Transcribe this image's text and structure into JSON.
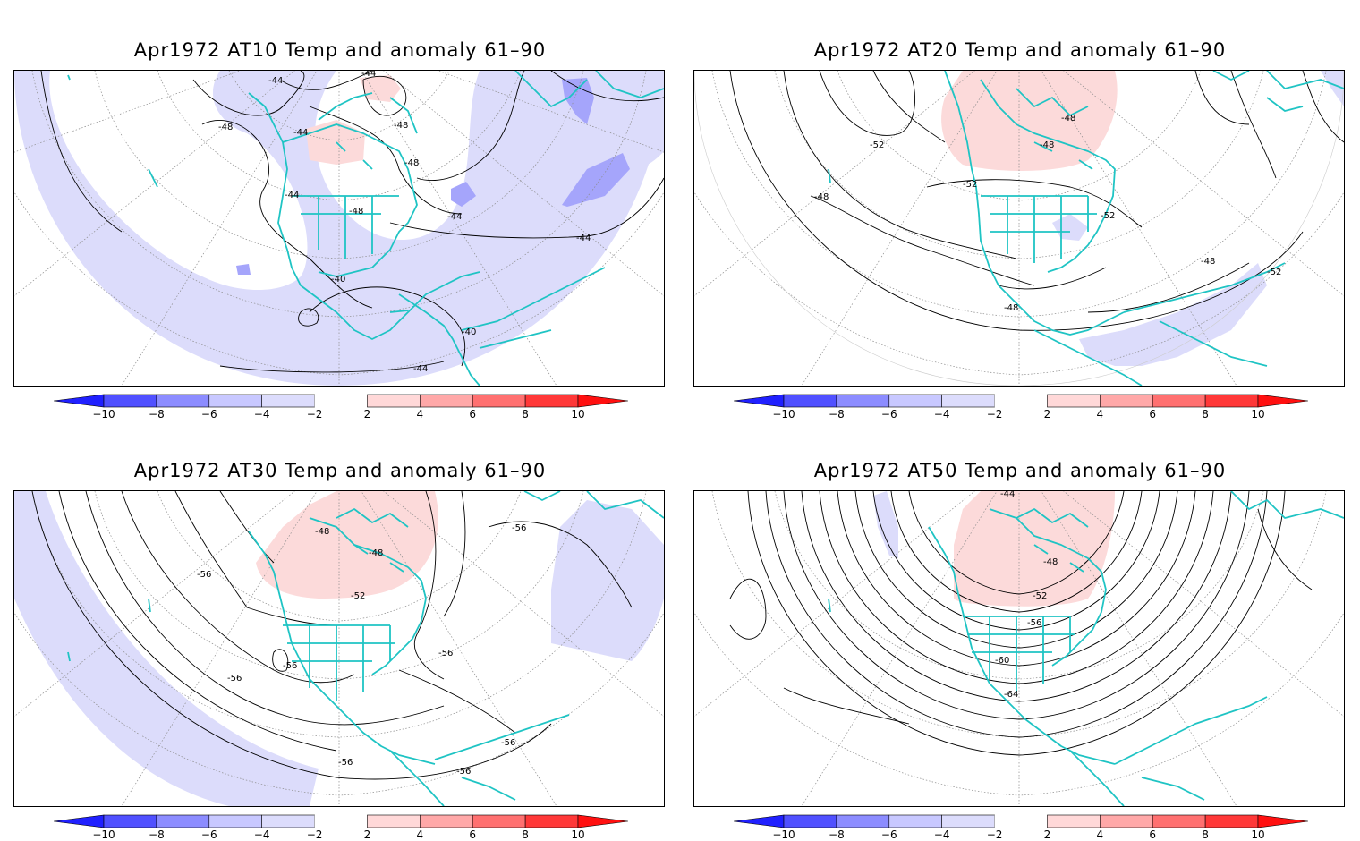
{
  "colors": {
    "coast": "#1fc4c4",
    "neg_fill": [
      "#2020ff",
      "#5050ff",
      "#8c8cff",
      "#c8c8ff",
      "#dcdcfc"
    ],
    "pos_fill": [
      "#ffd8d8",
      "#ffa8a8",
      "#ff7070",
      "#ff3838",
      "#ff1010"
    ],
    "weak_neg": "#dcdcfb",
    "mid_neg": "#a5a5fb",
    "weak_pos": "#fcdada",
    "contour": "#000000",
    "grid": "#8c8c8c"
  },
  "colorbar": {
    "labels": [
      "−10",
      "−8",
      "−6",
      "−4",
      "−2",
      "2",
      "4",
      "6",
      "8",
      "10"
    ]
  },
  "panels": [
    {
      "title": "Apr1972 AT10 Temp and anomaly 61–90",
      "contour_labels": [
        "-44",
        "-44",
        "-48",
        "-44",
        "-48",
        "-48",
        "-44",
        "-48",
        "-44",
        "-44",
        "-40",
        "-40",
        "-44"
      ]
    },
    {
      "title": "Apr1972 AT20 Temp and anomaly 61–90",
      "contour_labels": [
        "-52",
        "-48",
        "-48",
        "-48",
        "-52",
        "-52",
        "-48",
        "-52",
        "-48"
      ]
    },
    {
      "title": "Apr1972 AT30 Temp and anomaly 61–90",
      "contour_labels": [
        "-48",
        "-56",
        "-48",
        "-52",
        "-56",
        "-56",
        "-56",
        "-56",
        "-56",
        "-56",
        "-56"
      ]
    },
    {
      "title": "Apr1972 AT50 Temp and anomaly 61–90",
      "contour_labels": [
        "-44",
        "-48",
        "-52",
        "-56",
        "-60",
        "-64"
      ]
    }
  ]
}
